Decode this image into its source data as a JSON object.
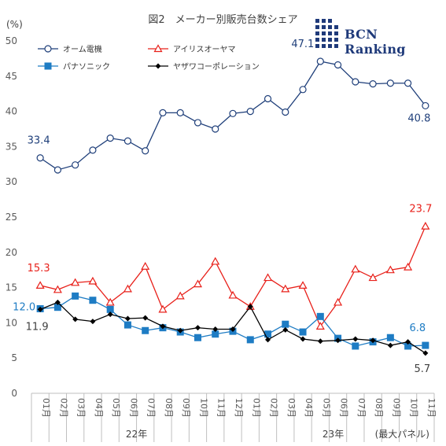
{
  "title": "図2　メーカー別販売台数シェア",
  "unit": "(%)",
  "logo": {
    "text": "BCN Ranking",
    "icon": "bcn-logo-icon"
  },
  "note": "(最大パネル)",
  "years": [
    {
      "label": "22年",
      "span": [
        0,
        11
      ]
    },
    {
      "label": "23年",
      "span": [
        12,
        22
      ]
    }
  ],
  "chart_data": {
    "type": "line",
    "title": "図2　メーカー別販売台数シェア",
    "ylabel": "(%)",
    "ylim": [
      0,
      50
    ],
    "yticks": [
      0,
      5,
      10,
      15,
      20,
      25,
      30,
      35,
      40,
      45,
      50
    ],
    "grid": false,
    "legend": "top-left",
    "categories": [
      "01月",
      "02月",
      "03月",
      "04月",
      "05月",
      "06月",
      "07月",
      "08月",
      "09月",
      "10月",
      "11月",
      "12月",
      "01月",
      "02月",
      "03月",
      "04月",
      "05月",
      "06月",
      "07月",
      "08月",
      "09月",
      "10月",
      "11月"
    ],
    "series": [
      {
        "name": "オーム電機",
        "color": "#1f3f7a",
        "marker": "circle-open",
        "values": [
          33.4,
          31.7,
          32.4,
          34.5,
          36.2,
          35.8,
          34.4,
          39.8,
          39.8,
          38.4,
          37.5,
          39.7,
          40.0,
          41.8,
          39.9,
          43.1,
          47.1,
          46.6,
          44.2,
          43.9,
          44.0,
          44.0,
          40.8
        ],
        "labels": [
          {
            "i": 0,
            "text": "33.4"
          },
          {
            "i": 16,
            "text": "47.1"
          },
          {
            "i": 22,
            "text": "40.8"
          }
        ]
      },
      {
        "name": "アイリスオーヤマ",
        "color": "#e8201a",
        "marker": "triangle-open",
        "values": [
          15.3,
          14.7,
          15.7,
          15.9,
          12.9,
          14.8,
          18.0,
          11.9,
          13.8,
          15.5,
          18.7,
          13.9,
          12.3,
          16.4,
          14.8,
          15.3,
          9.5,
          12.9,
          17.6,
          16.4,
          17.5,
          17.9,
          23.7
        ],
        "labels": [
          {
            "i": 0,
            "text": "15.3"
          },
          {
            "i": 22,
            "text": "23.7"
          }
        ]
      },
      {
        "name": "パナソニック",
        "color": "#1e7cc4",
        "marker": "square-filled",
        "values": [
          12.0,
          12.2,
          13.8,
          13.2,
          11.9,
          9.7,
          8.9,
          9.3,
          8.7,
          7.9,
          8.4,
          8.8,
          7.6,
          8.4,
          9.8,
          8.7,
          10.9,
          7.8,
          6.7,
          7.3,
          7.9,
          6.7,
          6.8
        ],
        "labels": [
          {
            "i": 0,
            "text": "12.0"
          },
          {
            "i": 22,
            "text": "6.8"
          }
        ]
      },
      {
        "name": "ヤザワコーポレーション",
        "color": "#000000",
        "marker": "diamond-filled",
        "values": [
          11.9,
          12.9,
          10.5,
          10.2,
          11.2,
          10.6,
          10.7,
          9.5,
          8.9,
          9.3,
          9.1,
          9.1,
          12.3,
          7.6,
          9.0,
          7.7,
          7.4,
          7.5,
          7.7,
          7.5,
          6.8,
          7.3,
          5.7
        ],
        "labels": [
          {
            "i": 0,
            "text": "11.9"
          },
          {
            "i": 22,
            "text": "5.7"
          }
        ]
      }
    ]
  }
}
